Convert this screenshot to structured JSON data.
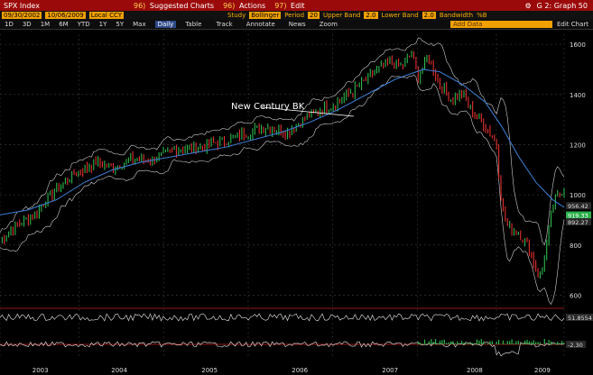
{
  "header": {
    "ticker": "SPX Index",
    "menus": [
      {
        "code": "96)",
        "label": "Suggested Charts"
      },
      {
        "code": "96)",
        "label": "Actions"
      },
      {
        "code": "97)",
        "label": "Edit"
      }
    ],
    "graph_label": "G 2: Graph 50"
  },
  "settings": {
    "start_date": "09/30/2002",
    "end_date": "10/06/2009",
    "currency": "Local CCY",
    "study_label": "Study",
    "study_value": "Bollinger",
    "period_label": "Period",
    "period_value": "20",
    "upper_label": "Upper Band",
    "upper_value": "2.0",
    "lower_label": "Lower Band",
    "lower_value": "2.0",
    "bandwidth_label": "Bandwidth",
    "pctb_label": "%B"
  },
  "toolbar": {
    "ranges": [
      "1D",
      "3D",
      "1M",
      "6M",
      "YTD",
      "1Y",
      "5Y",
      "Max"
    ],
    "frequency": "Daily",
    "table_label": "Table",
    "tools": [
      "Track",
      "Annotate",
      "News",
      "Zoom"
    ],
    "add_data_placeholder": "Add Data",
    "edit_chart": "Edit Chart"
  },
  "chart_data": {
    "type": "line",
    "annotation": "New Century BK",
    "x_labels": [
      "2003",
      "2004",
      "2005",
      "2006",
      "2007",
      "2008",
      "2009"
    ],
    "y_ticks": [
      600,
      800,
      1000,
      1200,
      1400,
      1600
    ],
    "ylim": [
      580,
      1640
    ],
    "price_path": [
      [
        0.0,
        820
      ],
      [
        0.03,
        880
      ],
      [
        0.06,
        920
      ],
      [
        0.09,
        1000
      ],
      [
        0.13,
        1080
      ],
      [
        0.17,
        1130
      ],
      [
        0.2,
        1110
      ],
      [
        0.23,
        1140
      ],
      [
        0.27,
        1140
      ],
      [
        0.31,
        1180
      ],
      [
        0.35,
        1190
      ],
      [
        0.39,
        1210
      ],
      [
        0.43,
        1240
      ],
      [
        0.47,
        1270
      ],
      [
        0.51,
        1250
      ],
      [
        0.55,
        1320
      ],
      [
        0.59,
        1360
      ],
      [
        0.63,
        1420
      ],
      [
        0.66,
        1480
      ],
      [
        0.69,
        1530
      ],
      [
        0.71,
        1510
      ],
      [
        0.73,
        1560
      ],
      [
        0.74,
        1470
      ],
      [
        0.76,
        1550
      ],
      [
        0.78,
        1440
      ],
      [
        0.8,
        1380
      ],
      [
        0.82,
        1400
      ],
      [
        0.84,
        1320
      ],
      [
        0.86,
        1280
      ],
      [
        0.88,
        1200
      ],
      [
        0.89,
        950
      ],
      [
        0.9,
        870
      ],
      [
        0.92,
        850
      ],
      [
        0.94,
        780
      ],
      [
        0.95,
        700
      ],
      [
        0.96,
        680
      ],
      [
        0.97,
        820
      ],
      [
        0.98,
        960
      ],
      [
        1.0,
        1030
      ]
    ],
    "ma_path": [
      [
        0.0,
        920
      ],
      [
        0.05,
        940
      ],
      [
        0.1,
        980
      ],
      [
        0.15,
        1050
      ],
      [
        0.2,
        1100
      ],
      [
        0.25,
        1130
      ],
      [
        0.3,
        1150
      ],
      [
        0.35,
        1170
      ],
      [
        0.4,
        1190
      ],
      [
        0.45,
        1220
      ],
      [
        0.5,
        1250
      ],
      [
        0.55,
        1290
      ],
      [
        0.6,
        1340
      ],
      [
        0.65,
        1400
      ],
      [
        0.7,
        1460
      ],
      [
        0.75,
        1500
      ],
      [
        0.78,
        1490
      ],
      [
        0.82,
        1440
      ],
      [
        0.86,
        1370
      ],
      [
        0.89,
        1270
      ],
      [
        0.92,
        1150
      ],
      [
        0.95,
        1050
      ],
      [
        0.98,
        980
      ],
      [
        1.0,
        950
      ]
    ],
    "right_labels": [
      {
        "value": 956.42,
        "text": "956.42",
        "bg": "#2a2a2a",
        "fg": "#dddddd"
      },
      {
        "value": 919.33,
        "text": "919.33",
        "bg": "#2bb24c",
        "fg": "#ffffff"
      },
      {
        "value": 892.27,
        "text": "892.27",
        "bg": "#2a2a2a",
        "fg": "#dddddd"
      }
    ],
    "bandwidth": {
      "label": "51.8554",
      "red_level": 0.18
    },
    "pctb": {
      "label": "-2.30",
      "ticks": [
        0
      ]
    }
  },
  "colors": {
    "header_red": "#9b0a0a",
    "orange": "#f0a000",
    "price_up": "#2db84d",
    "price_down": "#e23030",
    "band": "#cfcfcf",
    "ma": "#3a78c9"
  }
}
